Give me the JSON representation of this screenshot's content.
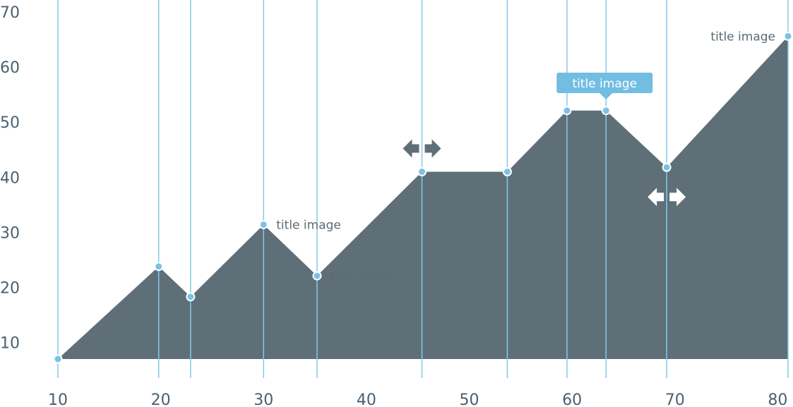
{
  "chart_data": {
    "type": "area",
    "grid": "vertical lines at each data point",
    "xlim": [
      10,
      81
    ],
    "ylim": [
      7,
      70
    ],
    "x_ticks": [
      "10",
      "20",
      "30",
      "40",
      "50",
      "60",
      "70",
      "80"
    ],
    "y_ticks": [
      "70",
      "60",
      "50",
      "40",
      "30",
      "20",
      "10"
    ],
    "x": [
      10,
      19.8,
      22.9,
      30.0,
      35.2,
      45.4,
      53.7,
      59.5,
      63.3,
      69.2,
      81.0
    ],
    "values": [
      7,
      23.8,
      18.3,
      31.4,
      22.1,
      41.0,
      41.0,
      52.1,
      52.1,
      41.8,
      65.6
    ],
    "annotations": [
      {
        "index": 3,
        "text": "title image",
        "style": "label-right"
      },
      {
        "index": 4,
        "text": "title image",
        "style": "label-right"
      },
      {
        "index": 8,
        "text": "title image",
        "style": "tooltip"
      },
      {
        "index": 10,
        "text": "title image",
        "style": "label-left"
      }
    ],
    "drag_markers": [
      {
        "index": 5,
        "color": "dark",
        "position": "above"
      },
      {
        "index": 9,
        "color": "light",
        "position": "below"
      }
    ],
    "colors": {
      "area": "#5e6f78",
      "gridline": "#87c9e8",
      "point_fill": "#7cc2e6",
      "point_stroke": "#ffffff",
      "tooltip": "#72bde2",
      "tick_text": "#4a6070",
      "label_text": "#5a6b75",
      "arrow_dark": "#5e6f78",
      "arrow_light": "#ffffff"
    }
  }
}
